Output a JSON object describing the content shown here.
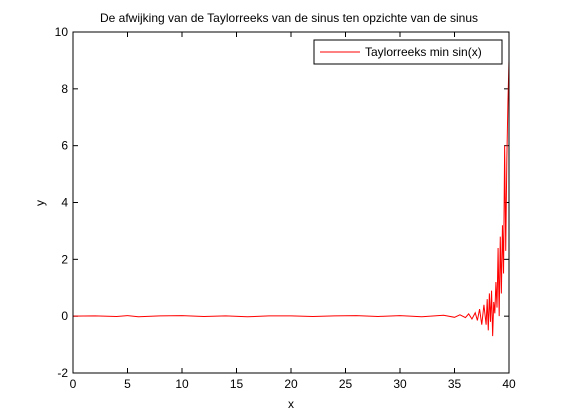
{
  "chart_data": {
    "type": "line",
    "title": "De afwijking van de Taylorreeks van de sinus ten opzichte van de sinus",
    "xlabel": "x",
    "ylabel": "y",
    "xlim": [
      0,
      40
    ],
    "ylim": [
      -2,
      10
    ],
    "xticks": [
      0,
      5,
      10,
      15,
      20,
      25,
      30,
      35,
      40
    ],
    "yticks": [
      -2,
      0,
      2,
      4,
      6,
      8,
      10
    ],
    "grid": false,
    "legend_position": "top-right",
    "series": [
      {
        "name": "Taylorreeks min sin(x)",
        "color": "#ff0000",
        "x": [
          0,
          2,
          4,
          5,
          6,
          8,
          10,
          12,
          14,
          16,
          18,
          20,
          22,
          24,
          26,
          28,
          30,
          32,
          34,
          35,
          35.5,
          36,
          36.3,
          36.6,
          36.9,
          37.1,
          37.3,
          37.5,
          37.7,
          37.9,
          38.0,
          38.1,
          38.2,
          38.3,
          38.4,
          38.5,
          38.6,
          38.7,
          38.8,
          38.9,
          39.0,
          39.1,
          39.2,
          39.3,
          39.4,
          39.5,
          39.6,
          39.7,
          39.8,
          39.9,
          40.0
        ],
        "y": [
          0,
          0.01,
          -0.01,
          0.02,
          -0.02,
          0.01,
          0.02,
          -0.01,
          0.01,
          -0.02,
          0.01,
          0.01,
          -0.01,
          0.01,
          0.02,
          -0.01,
          0.02,
          -0.02,
          0.03,
          -0.04,
          0.05,
          -0.05,
          0.08,
          -0.1,
          0.12,
          -0.15,
          0.25,
          -0.3,
          0.4,
          -0.3,
          0.6,
          -0.5,
          0.8,
          -0.2,
          0.9,
          -0.7,
          0.5,
          0.1,
          1.2,
          0.3,
          2.4,
          0.0,
          2.8,
          0.8,
          3.2,
          1.5,
          6.0,
          2.3,
          5.5,
          7.5,
          9.0
        ]
      }
    ]
  }
}
